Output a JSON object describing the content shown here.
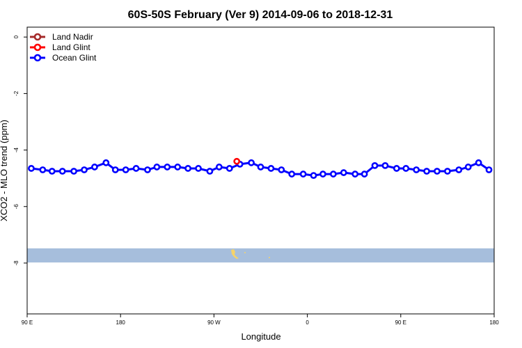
{
  "chart_data": {
    "type": "line",
    "title": "60S-50S February (Ver 9)   2014-09-06 to 2018-12-31",
    "xlabel": "Longitude",
    "ylabel": "XCO2 - MLO trend (ppm)",
    "xlim": [
      90,
      540
    ],
    "ylim": [
      -9.8,
      0.35
    ],
    "x_ticks": [
      {
        "value": 90,
        "label": "90 E"
      },
      {
        "value": 180,
        "label": "180"
      },
      {
        "value": 270,
        "label": "90 W"
      },
      {
        "value": 360,
        "label": "0"
      },
      {
        "value": 450,
        "label": "90 E"
      },
      {
        "value": 540,
        "label": "180"
      }
    ],
    "y_ticks": [
      {
        "value": 0,
        "label": "0"
      },
      {
        "value": -2,
        "label": "-2"
      },
      {
        "value": -4,
        "label": "-4"
      },
      {
        "value": -6,
        "label": "-6"
      },
      {
        "value": -8,
        "label": "-8"
      }
    ],
    "legend": {
      "position": "top-left",
      "entries": [
        {
          "name": "Land Nadir",
          "color": "#a52a2a"
        },
        {
          "name": "Land Glint",
          "color": "#ff0000"
        },
        {
          "name": "Ocean Glint",
          "color": "#0000ff"
        }
      ]
    },
    "series": [
      {
        "name": "Ocean Glint",
        "color": "#0000ff",
        "x": [
          94,
          105,
          114,
          124,
          135,
          145,
          155,
          166,
          175,
          185,
          195,
          206,
          215,
          225,
          235,
          245,
          255,
          266,
          275,
          285,
          295,
          306,
          315,
          325,
          335,
          345,
          356,
          366,
          375,
          385,
          395,
          406,
          415,
          425,
          435,
          446,
          455,
          465,
          475,
          485,
          495,
          506,
          515,
          525,
          535
        ],
        "values": [
          -4.65,
          -4.7,
          -4.75,
          -4.75,
          -4.75,
          -4.7,
          -4.6,
          -4.45,
          -4.7,
          -4.7,
          -4.65,
          -4.7,
          -4.6,
          -4.6,
          -4.6,
          -4.65,
          -4.65,
          -4.75,
          -4.6,
          -4.65,
          -4.5,
          -4.45,
          -4.6,
          -4.65,
          -4.7,
          -4.85,
          -4.85,
          -4.9,
          -4.85,
          -4.85,
          -4.8,
          -4.85,
          -4.85,
          -4.55,
          -4.55,
          -4.65,
          -4.65,
          -4.7,
          -4.75,
          -4.75,
          -4.75,
          -4.7,
          -4.6,
          -4.45,
          -4.7
        ]
      },
      {
        "name": "Land Glint",
        "color": "#ff0000",
        "x": [
          292
        ],
        "values": [
          -4.4
        ]
      }
    ],
    "map_band": {
      "ylim": [
        -7.48,
        -7.98
      ],
      "color": "#a6bedc",
      "land_color": "#f5d36a"
    },
    "grid": false
  }
}
